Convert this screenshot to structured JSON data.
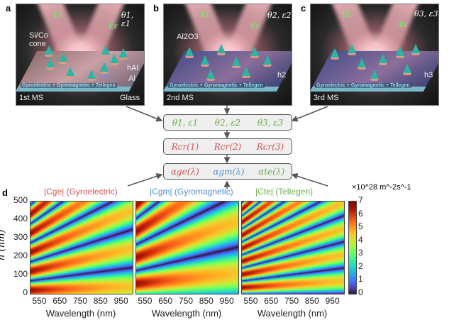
{
  "panels": [
    {
      "letter": "a",
      "label": "1st MS",
      "angle": "θ1, ε1",
      "e_in": "Ei",
      "e_out": "Er",
      "cone_label": "Si/Co cone",
      "thickness": "hAl",
      "layer1": "Al",
      "layer2": "Glass",
      "side_text": "Gyroelectric + Gyromagnetic + Tellegen",
      "axes": "y z x"
    },
    {
      "letter": "b",
      "label": "2nd MS",
      "angle": "θ2, ε2",
      "e_in": "Ei",
      "e_out": "Er",
      "coating": "Al2O3",
      "thickness": "h2",
      "side_text": "Gyroelectric + Gyromagnetic + Tellegen"
    },
    {
      "letter": "c",
      "label": "3rd MS",
      "angle": "θ3, ε3",
      "e_in": "Ei",
      "e_out": "Er",
      "thickness": "h3",
      "side_text": "Gyroelectric + Gyromagnetic + Tellegen"
    }
  ],
  "flow": [
    [
      "θ1, ε1",
      "θ2, ε2",
      "θ3, ε3"
    ],
    [
      "Rcr(1)",
      "Rcr(2)",
      "Rcr(3)"
    ],
    [
      "αge(λ)",
      "αgm(λ)",
      "αte(λ)"
    ]
  ],
  "colors": {
    "gyroelectric": "#d9534f",
    "gyromagnetic": "#4f8fd9",
    "tellegen": "#6ab04c",
    "flow_box": "#efefef"
  },
  "chart_data": {
    "type": "heatmap",
    "panel_letter": "d",
    "colormap": "turbo",
    "xlabel": "Wavelength (nm)",
    "ylabel": "h (nm)",
    "xlim": [
      500,
      1000
    ],
    "ylim": [
      0,
      500
    ],
    "xticks": [
      "550",
      "650",
      "750",
      "850",
      "950"
    ],
    "yticks": [
      "0",
      "100",
      "200",
      "300",
      "400",
      "500"
    ],
    "colorbar": {
      "range": [
        0,
        7
      ],
      "ticks": [
        "0",
        "1",
        "2",
        "3",
        "4",
        "5",
        "6",
        "7"
      ],
      "unit": "×10^28 m^-2s^-1"
    },
    "series": [
      {
        "symbol": "|Cge|",
        "name": "(Gyroelectric)",
        "color": "#d9534f"
      },
      {
        "symbol": "|Cgm|",
        "name": "(Gyromagnetic)",
        "color": "#4f8fd9"
      },
      {
        "symbol": "|Cte|",
        "name": "(Tellegen)",
        "color": "#6ab04c"
      }
    ]
  }
}
